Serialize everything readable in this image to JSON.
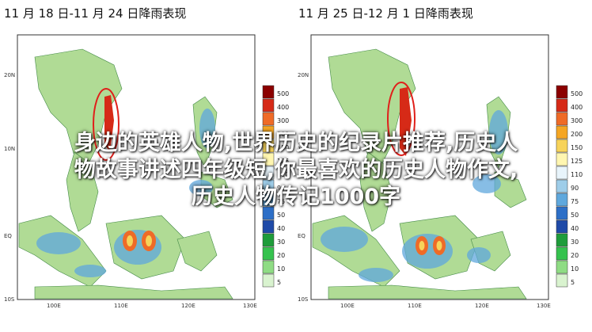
{
  "titles": {
    "left": "11 月 18 日-11 月 24 日降雨表现",
    "right": "11 月 25 日-12 月 1 日降雨表现"
  },
  "axes": {
    "lat_labels": [
      "20N",
      "10N",
      "EQ",
      "10S"
    ],
    "lon_labels": [
      "100E",
      "110E",
      "120E",
      "130E"
    ]
  },
  "legend": {
    "values": [
      "500",
      "400",
      "300",
      "200",
      "150",
      "125",
      "110",
      "90",
      "75",
      "50",
      "40",
      "30",
      "20",
      "10",
      "5"
    ],
    "colors": [
      "#8b0000",
      "#d62a17",
      "#ef6b27",
      "#f5a623",
      "#f7d35a",
      "#fff6b0",
      "#e8f4fb",
      "#9ecde9",
      "#5fa8dd",
      "#2d6fc7",
      "#1f4aa8",
      "#1e9c3a",
      "#35c24e",
      "#8fdc84",
      "#d9f3cf"
    ]
  },
  "overlay_text": {
    "line1": "身边的英雄人物,世界历史的纪录片推荐,历史人",
    "line2": "物故事讲述四年级短,你最喜欢的历史人物作文,",
    "line3": "历史人物传记1000字"
  }
}
